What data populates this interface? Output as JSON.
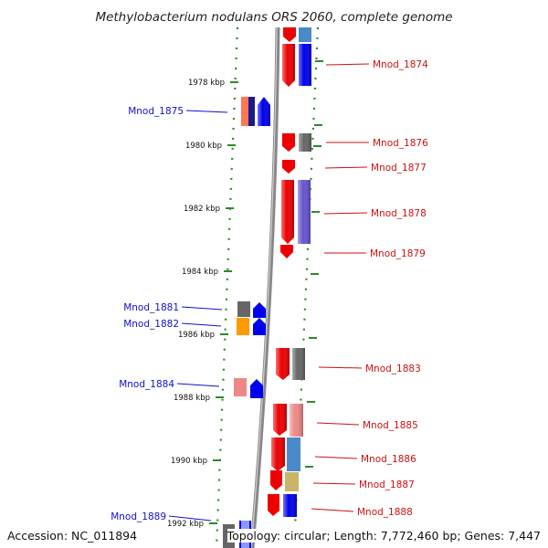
{
  "title": "Methylobacterium nodulans ORS 2060, complete genome",
  "footer": {
    "accession": "Accession: NC_011894",
    "summary": "Topology: circular; Length: 7,772,460 bp; Genes: 7,447"
  },
  "colors": {
    "backbone": "#888888",
    "tick": "#2a8a2a",
    "label_left": "#1010cc",
    "label_right": "#cc1010"
  },
  "ticks": [
    "1978 kbp",
    "1980 kbp",
    "1982 kbp",
    "1984 kbp",
    "1986 kbp",
    "1988 kbp",
    "1990 kbp",
    "1992 kbp"
  ],
  "labels_left": [
    "Mnod_1875",
    "Mnod_1881",
    "Mnod_1882",
    "Mnod_1884",
    "Mnod_1889"
  ],
  "labels_right": [
    "Mnod_1874",
    "Mnod_1876",
    "Mnod_1877",
    "Mnod_1878",
    "Mnod_1879",
    "Mnod_1883",
    "Mnod_1885",
    "Mnod_1886",
    "Mnod_1887",
    "Mnod_1888"
  ]
}
